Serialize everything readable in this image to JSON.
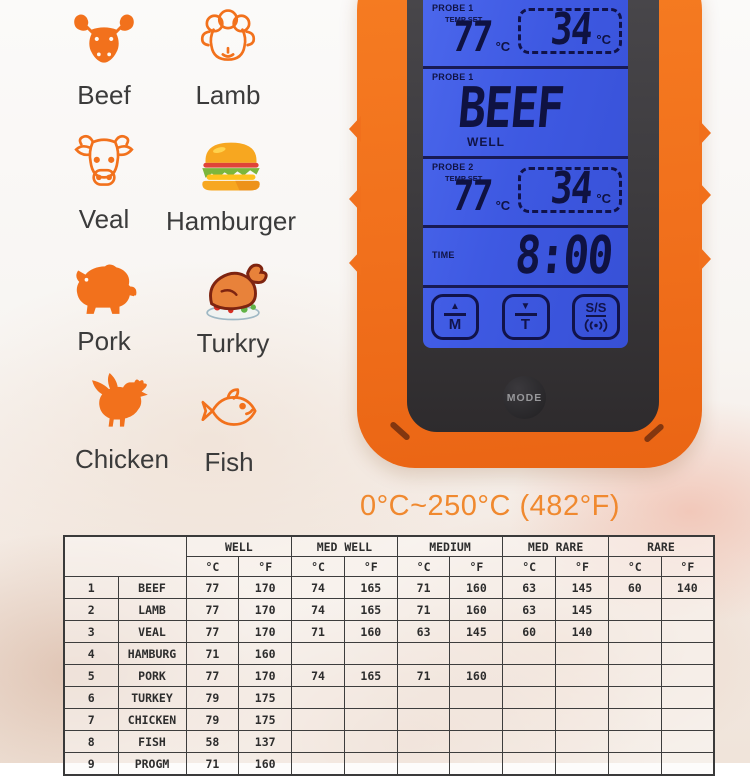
{
  "range_text": "0°C~250°C (482°F)",
  "legend": {
    "items": [
      {
        "label": "Beef",
        "icon": "bull-icon"
      },
      {
        "label": "Lamb",
        "icon": "sheep-icon"
      },
      {
        "label": "Veal",
        "icon": "cow-icon"
      },
      {
        "label": "Hamburger",
        "icon": "hamburger-icon"
      },
      {
        "label": "Pork",
        "icon": "pig-icon"
      },
      {
        "label": "Turkry",
        "icon": "roast-turkey-icon"
      },
      {
        "label": "Chicken",
        "icon": "rooster-icon"
      },
      {
        "label": "Fish",
        "icon": "fish-icon"
      }
    ]
  },
  "device": {
    "probe1_set": {
      "title": "PROBE 1",
      "subtitle": "TEMP SET",
      "set_value": "77",
      "set_unit": "°C",
      "target_value": "34",
      "target_unit": "°C"
    },
    "probe1_food": {
      "title": "PROBE 1",
      "food": "BEEF",
      "doneness": "WELL"
    },
    "probe2_set": {
      "title": "PROBE 2",
      "subtitle": "TEMP SET",
      "set_value": "77",
      "set_unit": "°C",
      "target_value": "34",
      "target_unit": "°C"
    },
    "timer": {
      "label": "TIME",
      "value": "8:00"
    },
    "touch_buttons": {
      "up": {
        "glyph": "▲",
        "letter": "M"
      },
      "down": {
        "glyph": "▼",
        "letter": "T"
      },
      "start_stop": {
        "label": "S/S"
      }
    },
    "mode_button": "MODE"
  },
  "table": {
    "col_groups": [
      "WELL",
      "MED WELL",
      "MEDIUM",
      "MED RARE",
      "RARE"
    ],
    "units": [
      "°C",
      "°F"
    ],
    "rows": [
      {
        "num": "1",
        "name": "BEEF",
        "values": [
          "77",
          "170",
          "74",
          "165",
          "71",
          "160",
          "63",
          "145",
          "60",
          "140"
        ]
      },
      {
        "num": "2",
        "name": "LAMB",
        "values": [
          "77",
          "170",
          "74",
          "165",
          "71",
          "160",
          "63",
          "145",
          "",
          ""
        ]
      },
      {
        "num": "3",
        "name": "VEAL",
        "values": [
          "77",
          "170",
          "71",
          "160",
          "63",
          "145",
          "60",
          "140",
          "",
          ""
        ]
      },
      {
        "num": "4",
        "name": "HAMBURG",
        "values": [
          "71",
          "160",
          "",
          "",
          "",
          "",
          "",
          "",
          "",
          ""
        ]
      },
      {
        "num": "5",
        "name": "PORK",
        "values": [
          "77",
          "170",
          "74",
          "165",
          "71",
          "160",
          "",
          "",
          "",
          ""
        ]
      },
      {
        "num": "6",
        "name": "TURKEY",
        "values": [
          "79",
          "175",
          "",
          "",
          "",
          "",
          "",
          "",
          "",
          ""
        ]
      },
      {
        "num": "7",
        "name": "CHICKEN",
        "values": [
          "79",
          "175",
          "",
          "",
          "",
          "",
          "",
          "",
          "",
          ""
        ]
      },
      {
        "num": "8",
        "name": "FISH",
        "values": [
          "58",
          "137",
          "",
          "",
          "",
          "",
          "",
          "",
          "",
          ""
        ]
      },
      {
        "num": "9",
        "name": "PROGM",
        "values": [
          "71",
          "160",
          "",
          "",
          "",
          "",
          "",
          "",
          "",
          ""
        ]
      }
    ]
  },
  "colors": {
    "accent_orange": "#F2711C",
    "lcd_blue": "#3E59E2",
    "lcd_ink": "#0F1242",
    "bezel_dark": "#3C3A3D",
    "range_text_orange": "#F0892F"
  }
}
